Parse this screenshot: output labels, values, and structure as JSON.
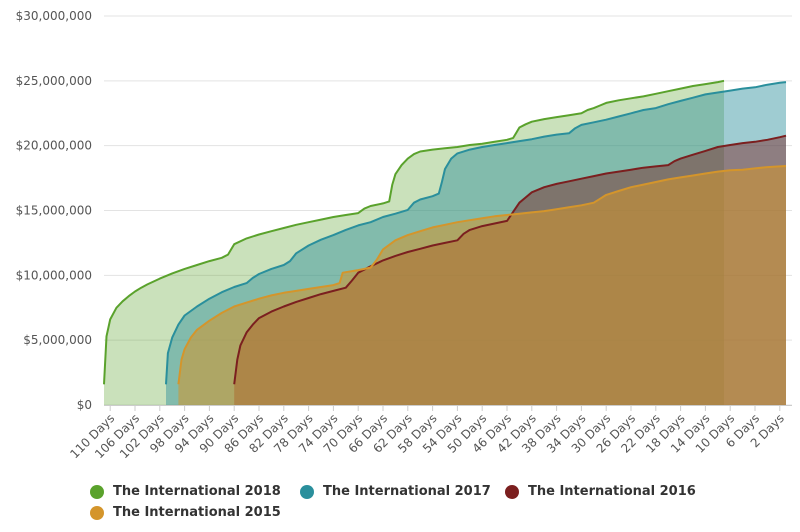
{
  "chart_data": {
    "type": "area",
    "title": "",
    "xlabel": "",
    "ylabel": "",
    "x_unit": "Days",
    "x_range": [
      111,
      1
    ],
    "x_reversed": true,
    "ylim": [
      0,
      30000000
    ],
    "y_ticks": [
      "$0",
      "$5,000,000",
      "$10,000,000",
      "$15,000,000",
      "$20,000,000",
      "$25,000,000",
      "$30,000,000"
    ],
    "x_ticks": [
      "110 Days",
      "106 Days",
      "102 Days",
      "98 Days",
      "94 Days",
      "90 Days",
      "86 Days",
      "82 Days",
      "78 Days",
      "74 Days",
      "70 Days",
      "66 Days",
      "62 Days",
      "58 Days",
      "54 Days",
      "50 Days",
      "46 Days",
      "42 Days",
      "38 Days",
      "34 Days",
      "30 Days",
      "26 Days",
      "22 Days",
      "18 Days",
      "14 Days",
      "10 Days",
      "6 Days",
      "2 Days"
    ],
    "grid": "horizontal",
    "legend_position": "bottom",
    "series": [
      {
        "name": "The International 2015",
        "color": "#d4952b",
        "points": [
          [
            99,
            1600000
          ],
          [
            98.5,
            3500000
          ],
          [
            98,
            4300000
          ],
          [
            97,
            5200000
          ],
          [
            96,
            5800000
          ],
          [
            94,
            6500000
          ],
          [
            92,
            7100000
          ],
          [
            90,
            7600000
          ],
          [
            88,
            7900000
          ],
          [
            86,
            8200000
          ],
          [
            84,
            8450000
          ],
          [
            82,
            8650000
          ],
          [
            80,
            8800000
          ],
          [
            78,
            8950000
          ],
          [
            76,
            9100000
          ],
          [
            74,
            9250000
          ],
          [
            73,
            9400000
          ],
          [
            72.5,
            10200000
          ],
          [
            70,
            10400000
          ],
          [
            68,
            10600000
          ],
          [
            67,
            11200000
          ],
          [
            66,
            12000000
          ],
          [
            64,
            12700000
          ],
          [
            62,
            13100000
          ],
          [
            60,
            13400000
          ],
          [
            58,
            13700000
          ],
          [
            56,
            13900000
          ],
          [
            54,
            14100000
          ],
          [
            52,
            14250000
          ],
          [
            50,
            14400000
          ],
          [
            48,
            14550000
          ],
          [
            46,
            14650000
          ],
          [
            44,
            14750000
          ],
          [
            42,
            14850000
          ],
          [
            40,
            14950000
          ],
          [
            38,
            15100000
          ],
          [
            36,
            15250000
          ],
          [
            34,
            15400000
          ],
          [
            32,
            15600000
          ],
          [
            31,
            15900000
          ],
          [
            30,
            16200000
          ],
          [
            28,
            16500000
          ],
          [
            26,
            16800000
          ],
          [
            24,
            17000000
          ],
          [
            22,
            17200000
          ],
          [
            20,
            17400000
          ],
          [
            18,
            17550000
          ],
          [
            16,
            17700000
          ],
          [
            14,
            17850000
          ],
          [
            12,
            18000000
          ],
          [
            10,
            18100000
          ],
          [
            8,
            18150000
          ],
          [
            6,
            18250000
          ],
          [
            4,
            18350000
          ],
          [
            2,
            18400000
          ],
          [
            1,
            18430000
          ]
        ]
      },
      {
        "name": "The International 2016",
        "color": "#7b1f1f",
        "points": [
          [
            90,
            1600000
          ],
          [
            89.5,
            3500000
          ],
          [
            89,
            4600000
          ],
          [
            88,
            5600000
          ],
          [
            87,
            6200000
          ],
          [
            86,
            6700000
          ],
          [
            84,
            7200000
          ],
          [
            82,
            7600000
          ],
          [
            80,
            7950000
          ],
          [
            78,
            8250000
          ],
          [
            76,
            8550000
          ],
          [
            74,
            8800000
          ],
          [
            72,
            9050000
          ],
          [
            71,
            9600000
          ],
          [
            70,
            10200000
          ],
          [
            68,
            10700000
          ],
          [
            66,
            11150000
          ],
          [
            64,
            11500000
          ],
          [
            62,
            11800000
          ],
          [
            60,
            12050000
          ],
          [
            58,
            12300000
          ],
          [
            56,
            12500000
          ],
          [
            54,
            12700000
          ],
          [
            53,
            13200000
          ],
          [
            52,
            13500000
          ],
          [
            50,
            13800000
          ],
          [
            48,
            14000000
          ],
          [
            46,
            14200000
          ],
          [
            45,
            14900000
          ],
          [
            44,
            15600000
          ],
          [
            43,
            16000000
          ],
          [
            42,
            16400000
          ],
          [
            40,
            16800000
          ],
          [
            38,
            17050000
          ],
          [
            36,
            17250000
          ],
          [
            34,
            17450000
          ],
          [
            32,
            17650000
          ],
          [
            30,
            17850000
          ],
          [
            28,
            18000000
          ],
          [
            26,
            18150000
          ],
          [
            24,
            18300000
          ],
          [
            22,
            18400000
          ],
          [
            20,
            18500000
          ],
          [
            19,
            18800000
          ],
          [
            18,
            19000000
          ],
          [
            16,
            19300000
          ],
          [
            14,
            19600000
          ],
          [
            12,
            19900000
          ],
          [
            10,
            20050000
          ],
          [
            8,
            20200000
          ],
          [
            6,
            20300000
          ],
          [
            4,
            20450000
          ],
          [
            2,
            20650000
          ],
          [
            1,
            20770000
          ]
        ]
      },
      {
        "name": "The International 2017",
        "color": "#2a8f9c",
        "points": [
          [
            101,
            1600000
          ],
          [
            100.7,
            4000000
          ],
          [
            100,
            5200000
          ],
          [
            99,
            6200000
          ],
          [
            98,
            6900000
          ],
          [
            96,
            7600000
          ],
          [
            94,
            8200000
          ],
          [
            92,
            8700000
          ],
          [
            90,
            9100000
          ],
          [
            88,
            9400000
          ],
          [
            87,
            9800000
          ],
          [
            86,
            10100000
          ],
          [
            84,
            10500000
          ],
          [
            82,
            10800000
          ],
          [
            81,
            11100000
          ],
          [
            80,
            11700000
          ],
          [
            78,
            12300000
          ],
          [
            76,
            12750000
          ],
          [
            74,
            13100000
          ],
          [
            72,
            13500000
          ],
          [
            70,
            13850000
          ],
          [
            68,
            14100000
          ],
          [
            66,
            14500000
          ],
          [
            64,
            14750000
          ],
          [
            62,
            15050000
          ],
          [
            61,
            15600000
          ],
          [
            60,
            15850000
          ],
          [
            58,
            16100000
          ],
          [
            57,
            16300000
          ],
          [
            56.5,
            17200000
          ],
          [
            56,
            18200000
          ],
          [
            55,
            19000000
          ],
          [
            54,
            19400000
          ],
          [
            52,
            19700000
          ],
          [
            50,
            19900000
          ],
          [
            48,
            20050000
          ],
          [
            46,
            20200000
          ],
          [
            44,
            20350000
          ],
          [
            42,
            20500000
          ],
          [
            40,
            20700000
          ],
          [
            38,
            20850000
          ],
          [
            36,
            20950000
          ],
          [
            35,
            21350000
          ],
          [
            34,
            21600000
          ],
          [
            32,
            21800000
          ],
          [
            30,
            22000000
          ],
          [
            28,
            22250000
          ],
          [
            26,
            22500000
          ],
          [
            24,
            22750000
          ],
          [
            22,
            22900000
          ],
          [
            20,
            23200000
          ],
          [
            18,
            23450000
          ],
          [
            16,
            23700000
          ],
          [
            14,
            23950000
          ],
          [
            12,
            24100000
          ],
          [
            10,
            24250000
          ],
          [
            8,
            24400000
          ],
          [
            6,
            24500000
          ],
          [
            4,
            24700000
          ],
          [
            2,
            24850000
          ],
          [
            1,
            24900000
          ]
        ]
      },
      {
        "name": "The International 2018",
        "color": "#5aa22c",
        "points": [
          [
            111,
            1600000
          ],
          [
            110.6,
            5300000
          ],
          [
            110,
            6600000
          ],
          [
            109,
            7500000
          ],
          [
            108,
            8000000
          ],
          [
            107,
            8400000
          ],
          [
            106,
            8750000
          ],
          [
            105,
            9050000
          ],
          [
            104,
            9300000
          ],
          [
            102,
            9750000
          ],
          [
            100,
            10150000
          ],
          [
            98,
            10500000
          ],
          [
            96,
            10800000
          ],
          [
            94,
            11100000
          ],
          [
            92,
            11350000
          ],
          [
            91,
            11600000
          ],
          [
            90,
            12400000
          ],
          [
            88,
            12850000
          ],
          [
            86,
            13150000
          ],
          [
            84,
            13400000
          ],
          [
            82,
            13650000
          ],
          [
            80,
            13900000
          ],
          [
            78,
            14100000
          ],
          [
            76,
            14300000
          ],
          [
            74,
            14500000
          ],
          [
            72,
            14650000
          ],
          [
            70,
            14800000
          ],
          [
            69,
            15150000
          ],
          [
            68,
            15350000
          ],
          [
            66,
            15550000
          ],
          [
            65,
            15700000
          ],
          [
            64.5,
            17000000
          ],
          [
            64,
            17800000
          ],
          [
            63,
            18500000
          ],
          [
            62,
            19000000
          ],
          [
            61,
            19350000
          ],
          [
            60,
            19550000
          ],
          [
            58,
            19700000
          ],
          [
            56,
            19800000
          ],
          [
            54,
            19900000
          ],
          [
            52,
            20050000
          ],
          [
            50,
            20150000
          ],
          [
            48,
            20300000
          ],
          [
            46,
            20450000
          ],
          [
            45,
            20600000
          ],
          [
            44.5,
            21000000
          ],
          [
            44,
            21400000
          ],
          [
            43,
            21650000
          ],
          [
            42,
            21850000
          ],
          [
            40,
            22050000
          ],
          [
            38,
            22200000
          ],
          [
            36,
            22350000
          ],
          [
            34,
            22500000
          ],
          [
            33,
            22750000
          ],
          [
            32,
            22900000
          ],
          [
            31,
            23100000
          ],
          [
            30,
            23300000
          ],
          [
            28,
            23500000
          ],
          [
            26,
            23650000
          ],
          [
            24,
            23800000
          ],
          [
            22,
            24000000
          ],
          [
            20,
            24200000
          ],
          [
            18,
            24400000
          ],
          [
            16,
            24600000
          ],
          [
            14,
            24750000
          ],
          [
            12,
            24900000
          ],
          [
            11,
            25000000
          ]
        ]
      }
    ],
    "legend": [
      {
        "name": "The International 2018",
        "color": "#5aa22c"
      },
      {
        "name": "The International 2017",
        "color": "#2a8f9c"
      },
      {
        "name": "The International 2016",
        "color": "#7b1f1f"
      },
      {
        "name": "The International 2015",
        "color": "#d4952b"
      }
    ]
  }
}
